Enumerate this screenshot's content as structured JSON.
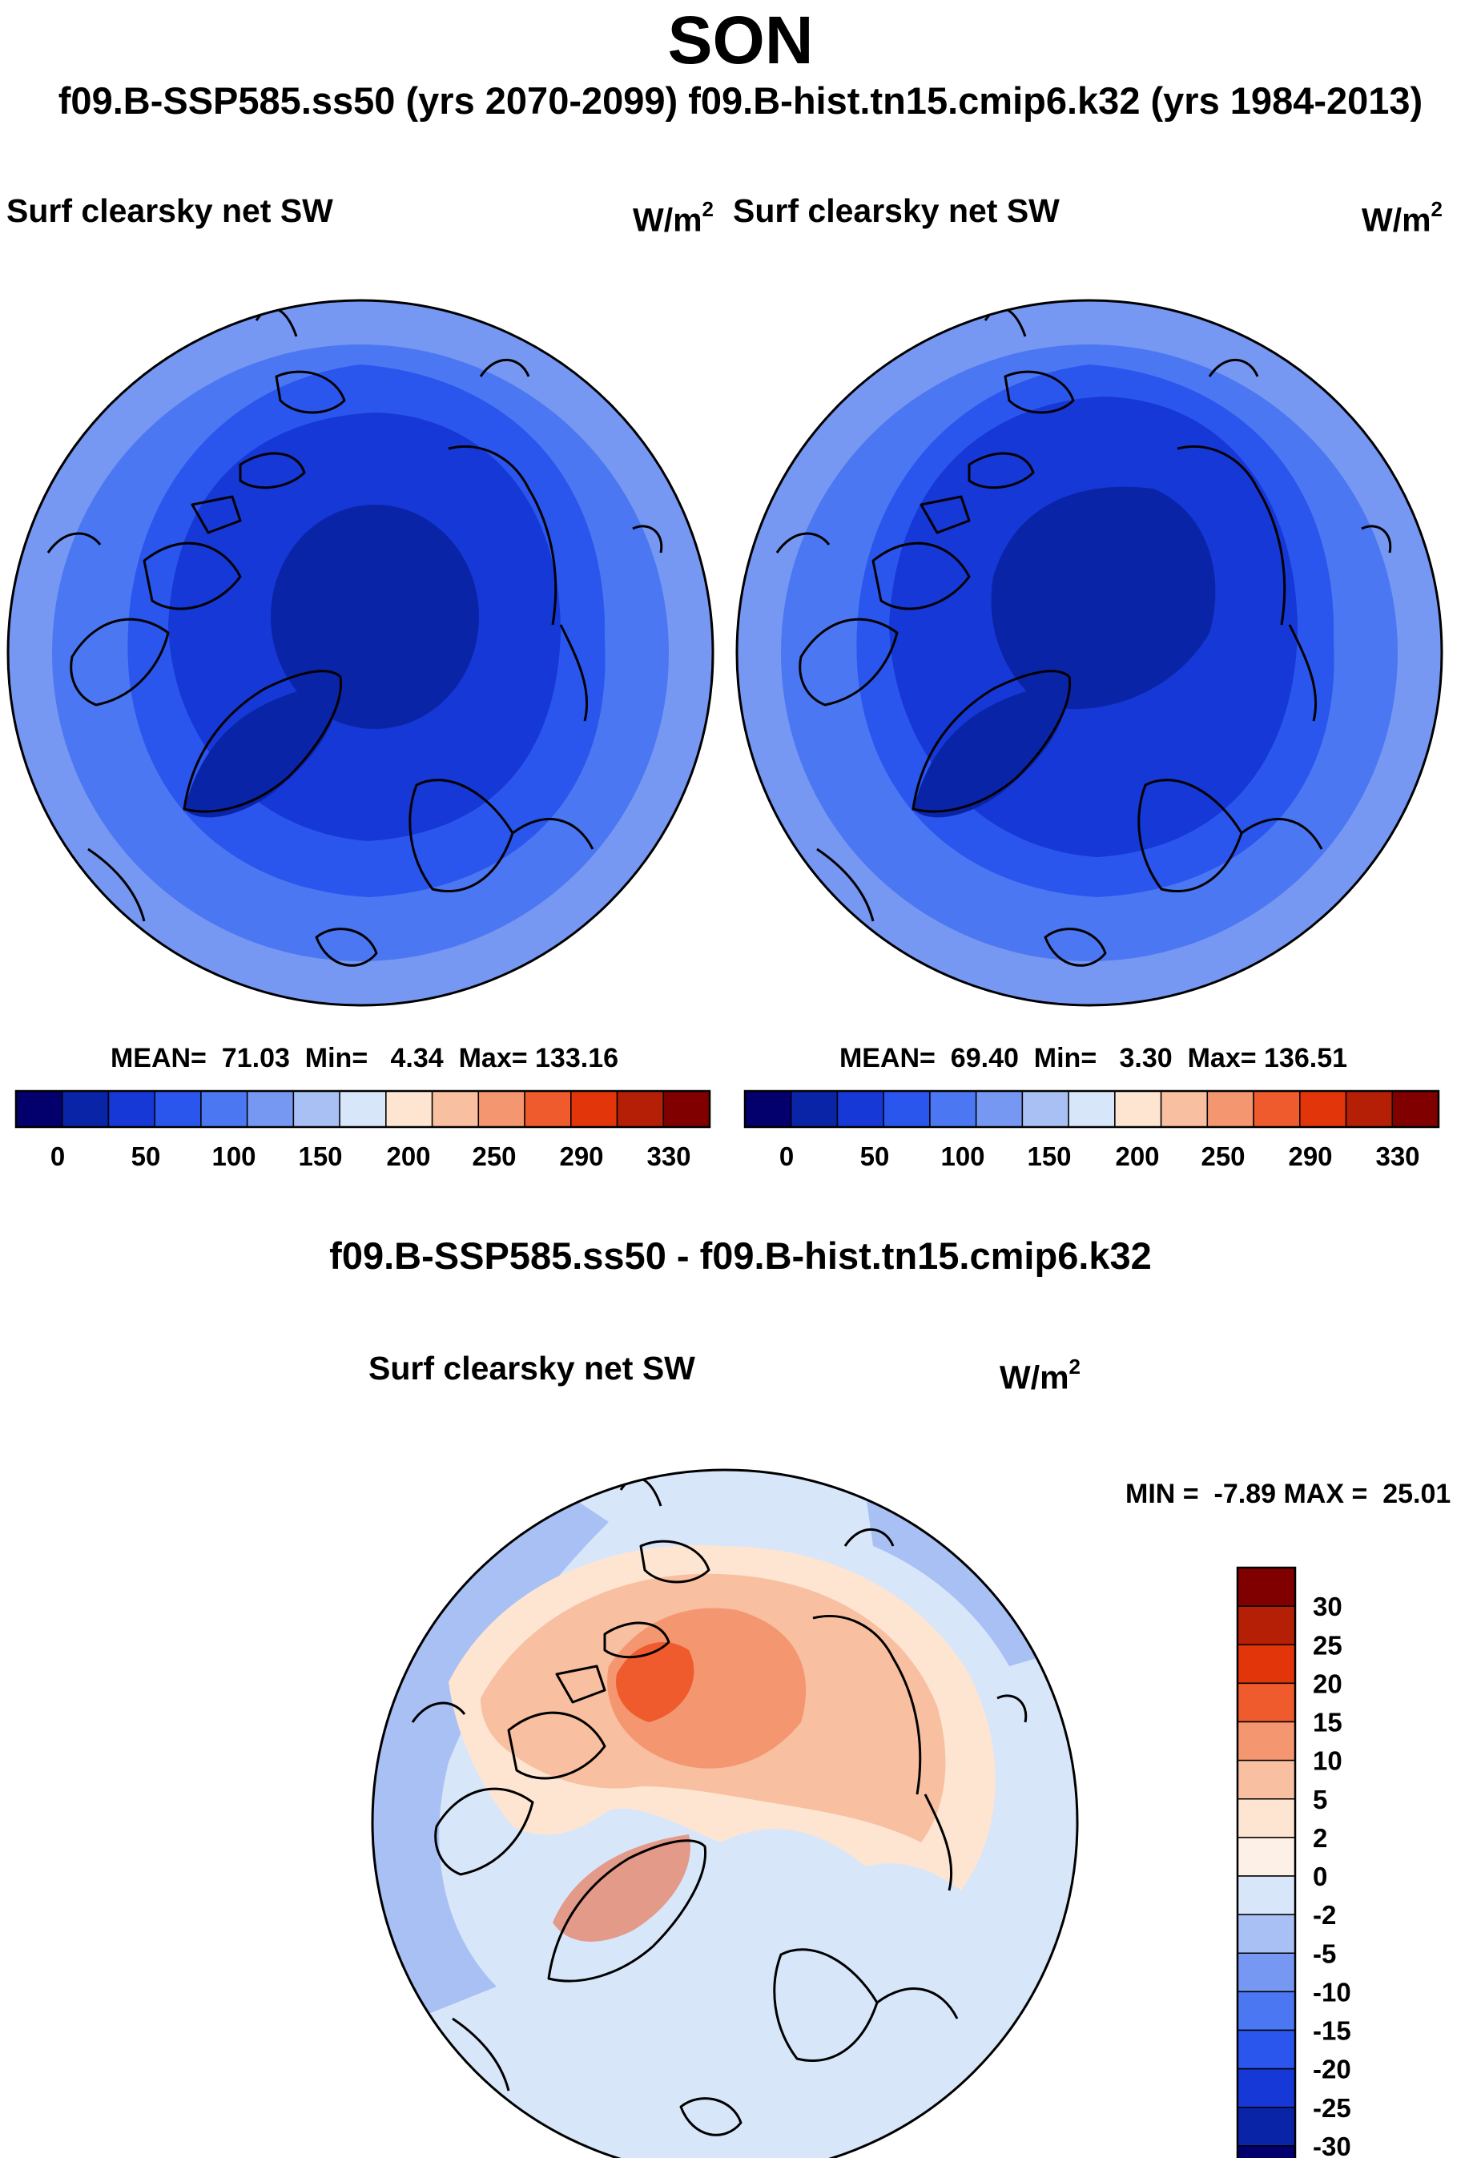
{
  "header": {
    "season": "SON",
    "subtitle": "f09.B-SSP585.ss50 (yrs 2070-2099)  f09.B-hist.tn15.cmip6.k32 (yrs 1984-2013)"
  },
  "panels": [
    {
      "label": "Surf clearsky net SW",
      "units": "W/m",
      "units_sup": "2",
      "stats": "MEAN=  71.03  Min=   4.34  Max= 133.16"
    },
    {
      "label": "Surf clearsky net SW",
      "units": "W/m",
      "units_sup": "2",
      "stats": "MEAN=  69.40  Min=   3.30  Max= 136.51"
    }
  ],
  "difference": {
    "title": "f09.B-SSP585.ss50 - f09.B-hist.tn15.cmip6.k32",
    "label": "Surf clearsky net SW",
    "units": "W/m",
    "units_sup": "2",
    "minmax": "MIN =  -7.89 MAX =  25.01"
  },
  "chart_data": [
    {
      "type": "heatmap",
      "title": "Surf clearsky net SW",
      "subtitle": "f09.B-SSP585.ss50 (yrs 2070-2099)",
      "units": "W/m2",
      "projection": "north polar stereographic",
      "stats": {
        "mean": 71.03,
        "min": 4.34,
        "max": 133.16
      },
      "contour_levels": [
        0,
        25,
        50,
        75,
        100,
        125,
        150,
        175,
        200,
        225,
        250,
        270,
        290,
        310,
        330
      ],
      "tick_labels": [
        "0",
        "50",
        "100",
        "150",
        "200",
        "250",
        "290",
        "330"
      ],
      "bands": [
        {
          "upper": 0,
          "color": "#03006e"
        },
        {
          "upper": 25,
          "color": "#0a24a8"
        },
        {
          "upper": 50,
          "color": "#1538d6"
        },
        {
          "upper": 75,
          "color": "#2a56ee"
        },
        {
          "upper": 100,
          "color": "#4b78f2"
        },
        {
          "upper": 125,
          "color": "#7698f2"
        },
        {
          "upper": 150,
          "color": "#a9c0f4"
        },
        {
          "upper": 175,
          "color": "#d8e6fa"
        },
        {
          "upper": 200,
          "color": "#fde5d2"
        },
        {
          "upper": 225,
          "color": "#f8bfa1"
        },
        {
          "upper": 250,
          "color": "#f49670"
        },
        {
          "upper": 270,
          "color": "#ef5b2c"
        },
        {
          "upper": 290,
          "color": "#e2360a"
        },
        {
          "upper": 310,
          "color": "#b51f05"
        },
        {
          "upper": 330,
          "color": "#800000"
        }
      ]
    },
    {
      "type": "heatmap",
      "title": "Surf clearsky net SW",
      "subtitle": "f09.B-hist.tn15.cmip6.k32 (yrs 1984-2013)",
      "units": "W/m2",
      "projection": "north polar stereographic",
      "stats": {
        "mean": 69.4,
        "min": 3.3,
        "max": 136.51
      },
      "contour_levels": [
        0,
        25,
        50,
        75,
        100,
        125,
        150,
        175,
        200,
        225,
        250,
        270,
        290,
        310,
        330
      ],
      "tick_labels": [
        "0",
        "50",
        "100",
        "150",
        "200",
        "250",
        "290",
        "330"
      ]
    },
    {
      "type": "heatmap",
      "title": "Surf clearsky net SW",
      "subtitle": "f09.B-SSP585.ss50 - f09.B-hist.tn15.cmip6.k32",
      "units": "W/m2",
      "projection": "north polar stereographic",
      "stats": {
        "min": -7.89,
        "max": 25.01
      },
      "tick_labels": [
        "30",
        "25",
        "20",
        "15",
        "10",
        "5",
        "2",
        "0",
        "-2",
        "-5",
        "-10",
        "-15",
        "-20",
        "-25",
        "-30"
      ],
      "bands": [
        {
          "range": [
            30,
            35
          ],
          "color": "#800000"
        },
        {
          "range": [
            25,
            30
          ],
          "color": "#b51f05"
        },
        {
          "range": [
            20,
            25
          ],
          "color": "#e2360a"
        },
        {
          "range": [
            15,
            20
          ],
          "color": "#ef5b2c"
        },
        {
          "range": [
            10,
            15
          ],
          "color": "#f49670"
        },
        {
          "range": [
            5,
            10
          ],
          "color": "#f8bfa1"
        },
        {
          "range": [
            2,
            5
          ],
          "color": "#fde5d2"
        },
        {
          "range": [
            0,
            2
          ],
          "color": "#fdf0e6"
        },
        {
          "range": [
            -2,
            0
          ],
          "color": "#d8e6fa"
        },
        {
          "range": [
            -5,
            -2
          ],
          "color": "#a9c0f4"
        },
        {
          "range": [
            -10,
            -5
          ],
          "color": "#7698f2"
        },
        {
          "range": [
            -15,
            -10
          ],
          "color": "#4b78f2"
        },
        {
          "range": [
            -20,
            -15
          ],
          "color": "#2a56ee"
        },
        {
          "range": [
            -25,
            -20
          ],
          "color": "#1538d6"
        },
        {
          "range": [
            -30,
            -25
          ],
          "color": "#0a24a8"
        },
        {
          "range": [
            -35,
            -30
          ],
          "color": "#03006e"
        }
      ]
    }
  ]
}
